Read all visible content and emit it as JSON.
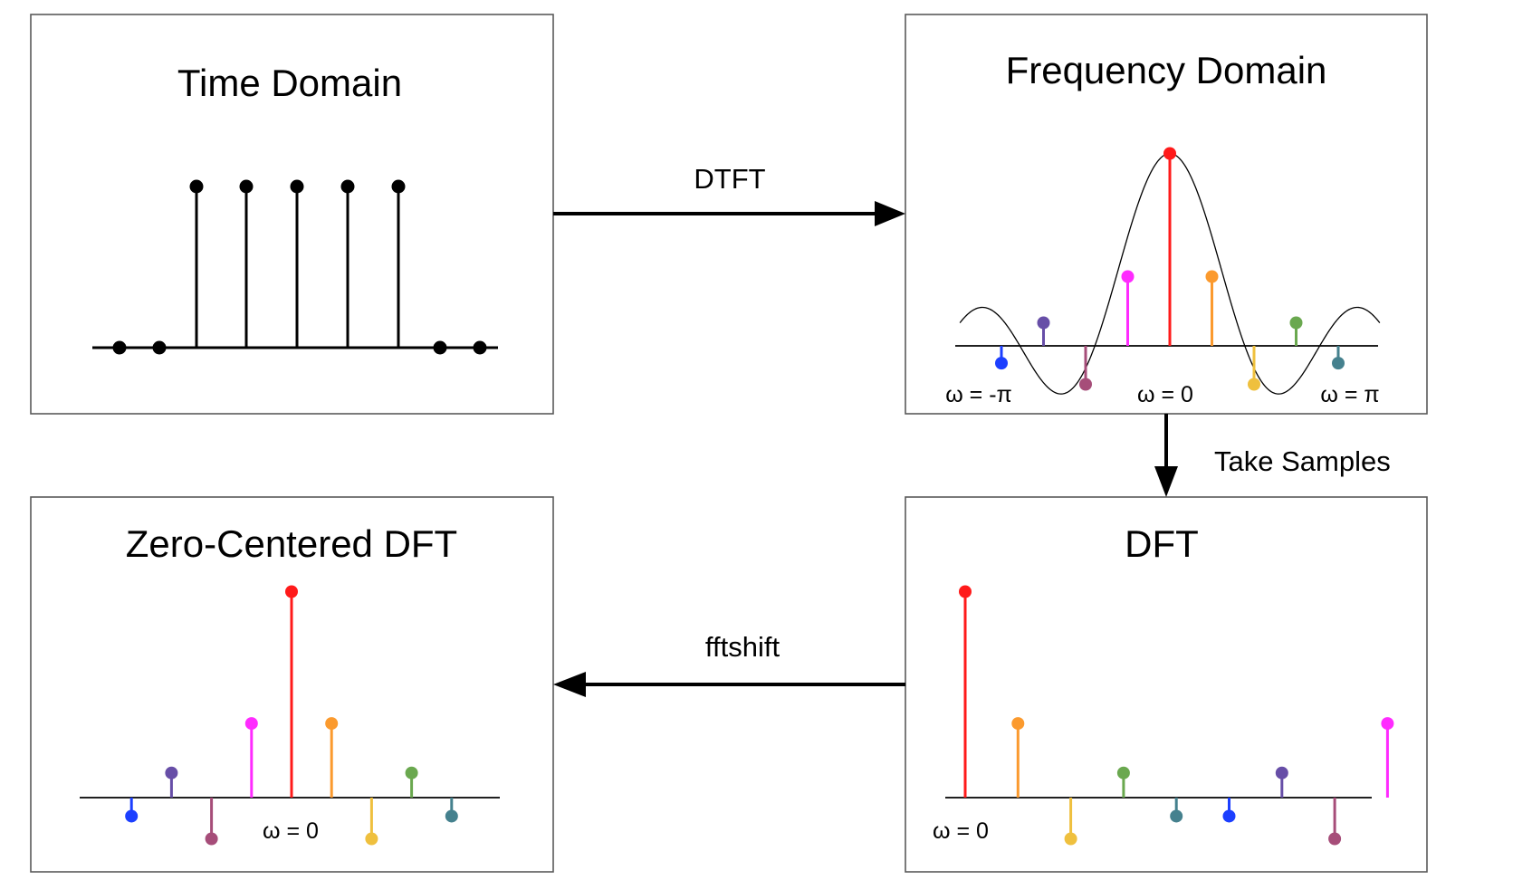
{
  "panels": {
    "time_domain": {
      "title": "Time Domain"
    },
    "frequency_domain": {
      "title": "Frequency Domain",
      "labels": {
        "minus_pi": "ω = -π",
        "zero": "ω = 0",
        "pi": "ω = π"
      }
    },
    "dft": {
      "title": "DFT",
      "labels": {
        "zero": "ω = 0"
      }
    },
    "zero_centered_dft": {
      "title": "Zero-Centered DFT",
      "labels": {
        "zero": "ω = 0"
      }
    }
  },
  "edges": {
    "dtft": "DTFT",
    "take_samples": "Take Samples",
    "fftshift": "fftshift"
  },
  "colors": {
    "c0": "#ff1a1a",
    "c1": "#fb9a2e",
    "c2": "#efc03e",
    "c3": "#6aa84f",
    "c4": "#45818e",
    "c5": "#1c3fff",
    "c6": "#674ea7",
    "c7": "#a64d79",
    "c8": "#ff2bff",
    "black": "#000000"
  },
  "time_domain_signal": {
    "n": [
      -6,
      -5,
      -4,
      -3,
      -2,
      -1,
      0,
      1,
      2
    ],
    "x": [
      0,
      0,
      1,
      1,
      1,
      1,
      1,
      0,
      0
    ]
  },
  "dft_values": {
    "k": [
      0,
      1,
      2,
      3,
      4,
      5,
      6,
      7,
      8
    ],
    "X": [
      5,
      1.8,
      -1.0,
      0.6,
      -0.45,
      -0.45,
      0.6,
      -1.0,
      1.8
    ]
  }
}
